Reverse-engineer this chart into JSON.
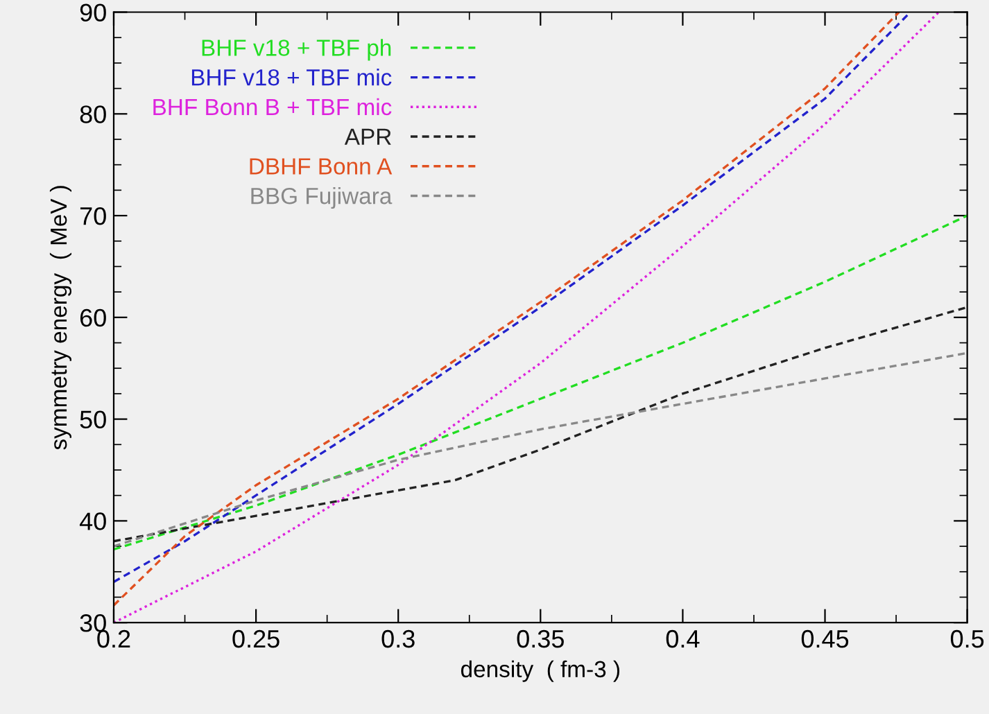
{
  "chart_data": {
    "type": "line",
    "xlabel": "density  ( fm-3 )",
    "ylabel": "symmetry energy  ( MeV )",
    "xlim": [
      0.2,
      0.5
    ],
    "ylim": [
      30,
      90
    ],
    "xticks": [
      0.2,
      0.25,
      0.3,
      0.35,
      0.4,
      0.45,
      0.5
    ],
    "yticks": [
      30,
      40,
      50,
      60,
      70,
      80,
      90
    ],
    "grid": false,
    "legend": "top left",
    "marker": "none",
    "series": [
      {
        "name": "BHF v18 + TBF ph",
        "color": "#22dd22",
        "line_style": "dashed",
        "x": [
          0.2,
          0.25,
          0.3,
          0.35,
          0.4,
          0.45,
          0.5
        ],
        "values": [
          37.2,
          41.5,
          46.5,
          52,
          57.5,
          63.5,
          70
        ]
      },
      {
        "name": "BHF v18 + TBF mic",
        "color": "#2222cc",
        "line_style": "dashed",
        "x": [
          0.2,
          0.225,
          0.25,
          0.3,
          0.35,
          0.4,
          0.45,
          0.48
        ],
        "values": [
          34,
          38,
          42.5,
          51.5,
          61,
          71,
          81.5,
          90
        ]
      },
      {
        "name": "BHF Bonn B + TBF mic",
        "color": "#dd22dd",
        "line_style": "dotted",
        "x": [
          0.2,
          0.25,
          0.3,
          0.35,
          0.4,
          0.45,
          0.49
        ],
        "values": [
          30,
          37,
          45.5,
          55.5,
          67,
          79,
          90
        ]
      },
      {
        "name": "APR",
        "color": "#222222",
        "line_style": "dashed",
        "x": [
          0.2,
          0.25,
          0.3,
          0.32,
          0.35,
          0.4,
          0.45,
          0.5
        ],
        "values": [
          38,
          40.5,
          43,
          44,
          47,
          52.5,
          57,
          61
        ]
      },
      {
        "name": "DBHF Bonn A",
        "color": "#e05020",
        "line_style": "dashed",
        "x": [
          0.2,
          0.225,
          0.25,
          0.3,
          0.35,
          0.4,
          0.45,
          0.476
        ],
        "values": [
          31.7,
          38.5,
          43.5,
          52,
          61.5,
          71.5,
          82.5,
          90
        ]
      },
      {
        "name": "BBG Fujiwara",
        "color": "#888888",
        "line_style": "dashed",
        "x": [
          0.2,
          0.25,
          0.3,
          0.35,
          0.4,
          0.45,
          0.5
        ],
        "values": [
          37.5,
          42,
          46,
          49,
          51.5,
          54,
          56.5
        ]
      }
    ]
  }
}
